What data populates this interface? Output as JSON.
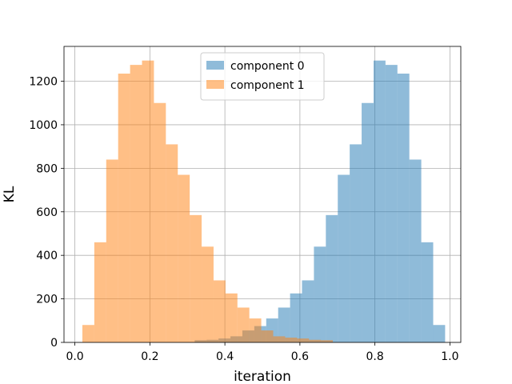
{
  "chart_data": {
    "type": "histogram",
    "xlabel": "iteration",
    "ylabel": "KL",
    "xlim": [
      -0.029,
      1.029
    ],
    "ylim": [
      0,
      1360
    ],
    "xticks": [
      0.0,
      0.2,
      0.4,
      0.6,
      0.8,
      1.0
    ],
    "yticks": [
      0,
      200,
      400,
      600,
      800,
      1000,
      1200
    ],
    "grid": true,
    "legend_position": "top-center",
    "bin_width": 0.0318,
    "series": [
      {
        "name": "component 0",
        "color": "#1f77b4",
        "opacity": 0.5,
        "bins": [
          {
            "x0": 0.3194,
            "height": 10
          },
          {
            "x0": 0.3512,
            "height": 12
          },
          {
            "x0": 0.383,
            "height": 18
          },
          {
            "x0": 0.4148,
            "height": 28
          },
          {
            "x0": 0.4466,
            "height": 55
          },
          {
            "x0": 0.4784,
            "height": 75
          },
          {
            "x0": 0.5102,
            "height": 110
          },
          {
            "x0": 0.542,
            "height": 160
          },
          {
            "x0": 0.5738,
            "height": 225
          },
          {
            "x0": 0.6056,
            "height": 285
          },
          {
            "x0": 0.6374,
            "height": 440
          },
          {
            "x0": 0.6692,
            "height": 585
          },
          {
            "x0": 0.701,
            "height": 770
          },
          {
            "x0": 0.7328,
            "height": 910
          },
          {
            "x0": 0.7646,
            "height": 1100
          },
          {
            "x0": 0.7964,
            "height": 1295
          },
          {
            "x0": 0.8282,
            "height": 1275
          },
          {
            "x0": 0.86,
            "height": 1235
          },
          {
            "x0": 0.8918,
            "height": 840
          },
          {
            "x0": 0.9236,
            "height": 460
          },
          {
            "x0": 0.9554,
            "height": 80
          }
        ]
      },
      {
        "name": "component 1",
        "color": "#ff7f0e",
        "opacity": 0.5,
        "bins": [
          {
            "x0": 0.02,
            "height": 80
          },
          {
            "x0": 0.0518,
            "height": 460
          },
          {
            "x0": 0.0836,
            "height": 840
          },
          {
            "x0": 0.1154,
            "height": 1235
          },
          {
            "x0": 0.1472,
            "height": 1275
          },
          {
            "x0": 0.179,
            "height": 1295
          },
          {
            "x0": 0.2108,
            "height": 1100
          },
          {
            "x0": 0.2426,
            "height": 910
          },
          {
            "x0": 0.2744,
            "height": 770
          },
          {
            "x0": 0.3062,
            "height": 585
          },
          {
            "x0": 0.338,
            "height": 440
          },
          {
            "x0": 0.3698,
            "height": 285
          },
          {
            "x0": 0.4016,
            "height": 225
          },
          {
            "x0": 0.4334,
            "height": 160
          },
          {
            "x0": 0.4652,
            "height": 110
          },
          {
            "x0": 0.497,
            "height": 55
          },
          {
            "x0": 0.5288,
            "height": 28
          },
          {
            "x0": 0.5606,
            "height": 22
          },
          {
            "x0": 0.5924,
            "height": 18
          },
          {
            "x0": 0.6242,
            "height": 12
          },
          {
            "x0": 0.656,
            "height": 10
          }
        ]
      }
    ]
  }
}
